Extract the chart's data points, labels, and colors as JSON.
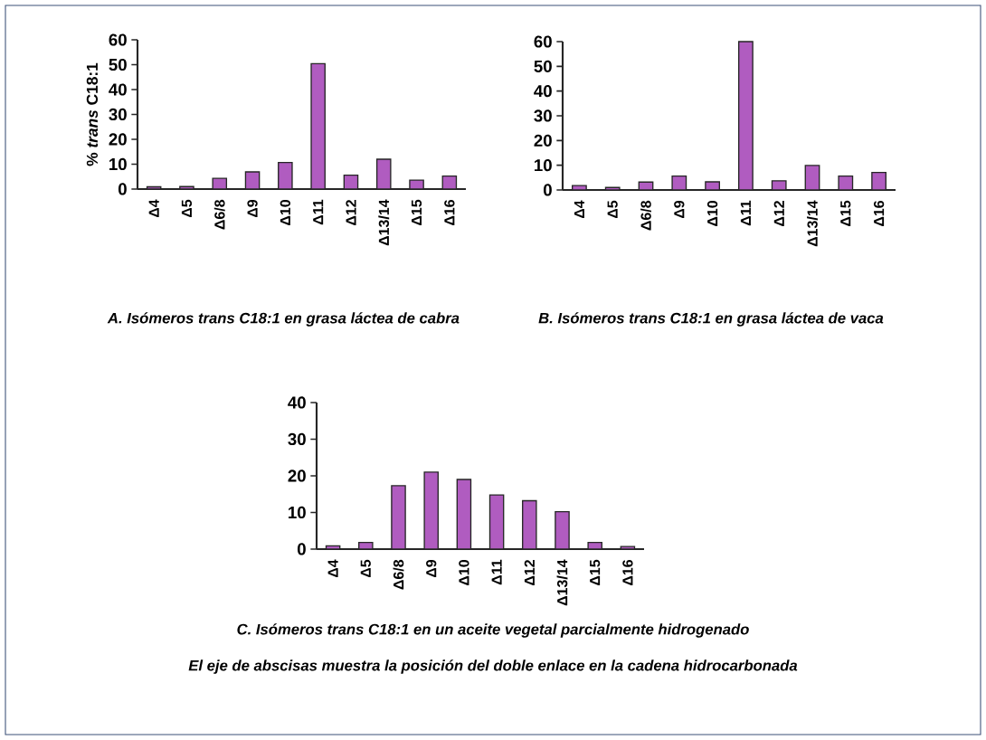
{
  "chart_data": [
    {
      "type": "bar",
      "title": "A. Isómeros trans C18:1 en grasa láctea de cabra",
      "ylabel": "% *trans* C18:1",
      "categories": [
        "Δ4",
        "Δ5",
        "Δ6/8",
        "Δ9",
        "Δ10",
        "Δ11",
        "Δ12",
        "Δ13/14",
        "Δ15",
        "Δ16"
      ],
      "values": [
        0.9,
        1,
        4.3,
        6.9,
        10.7,
        50.4,
        5.6,
        12,
        3.6,
        5.2
      ],
      "color": "#b05cc0",
      "ylim": [
        0,
        60
      ],
      "yticks": [
        0,
        10,
        20,
        30,
        40,
        50,
        60
      ]
    },
    {
      "type": "bar",
      "title": "B. Isómeros trans C18:1 en grasa láctea de vaca",
      "categories": [
        "Δ4",
        "Δ5",
        "Δ6/8",
        "Δ9",
        "Δ10",
        "Δ11",
        "Δ12",
        "Δ13/14",
        "Δ15",
        "Δ16"
      ],
      "values": [
        1.8,
        1,
        3.2,
        5.6,
        3.3,
        60,
        3.7,
        9.9,
        5.6,
        7.1
      ],
      "color": "#b05cc0",
      "ylim": [
        0,
        60
      ],
      "yticks": [
        0,
        10,
        20,
        30,
        40,
        50,
        60
      ]
    },
    {
      "type": "bar",
      "title": "C. Isómeros trans C18:1 en un aceite vegetal parcialmente hidrogenado",
      "categories": [
        "Δ4",
        "Δ5",
        "Δ6/8",
        "Δ9",
        "Δ10",
        "Δ11",
        "Δ12",
        "Δ13/14",
        "Δ15",
        "Δ16"
      ],
      "values": [
        0.9,
        1.8,
        17.3,
        21,
        19,
        14.8,
        13.2,
        10.2,
        1.8,
        0.7
      ],
      "color": "#b05cc0",
      "ylim": [
        0,
        40
      ],
      "yticks": [
        0,
        10,
        20,
        30,
        40
      ],
      "annotations": [
        "El eje de abscisas muestra la posición del doble enlace en la cadena hidrocarbonada"
      ]
    }
  ]
}
